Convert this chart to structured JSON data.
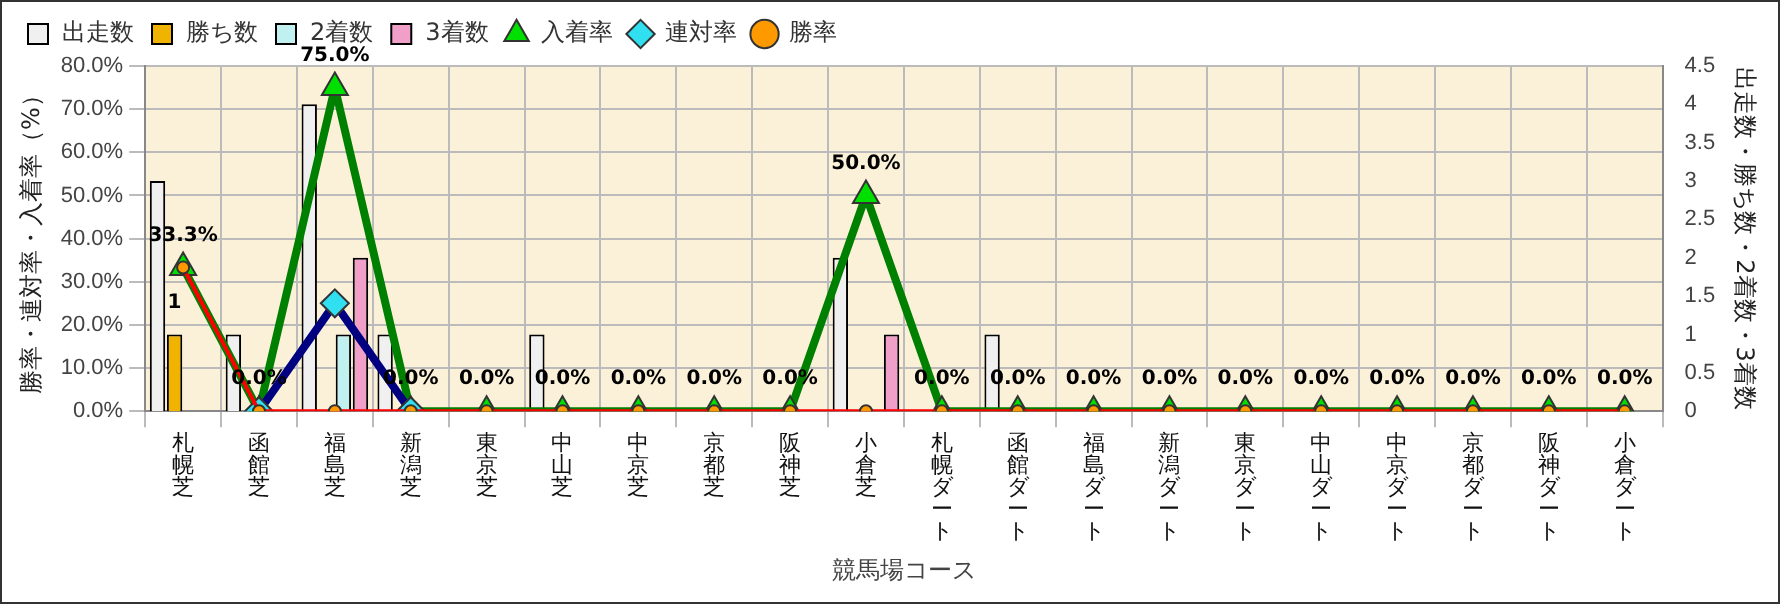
{
  "chart_data": {
    "type": "bar",
    "xlabel": "競馬場コース",
    "ylabel": "勝率・連対率・入着率（%）",
    "y2label": "出走数・勝ち数・2着数・3着数",
    "categories": [
      "札幌芝",
      "函館芝",
      "福島芝",
      "新潟芝",
      "東京芝",
      "中山芝",
      "中京芝",
      "京都芝",
      "阪神芝",
      "小倉芝",
      "札幌ダート",
      "函館ダート",
      "福島ダート",
      "新潟ダート",
      "東京ダート",
      "中山ダート",
      "中京ダート",
      "京都ダート",
      "阪神ダート",
      "小倉ダート"
    ],
    "series": [
      {
        "name": "出走数",
        "axis": "y2",
        "color": "#f0f0f0",
        "values": [
          3,
          1,
          4,
          1,
          0,
          1,
          0,
          0,
          0,
          2,
          0,
          1,
          0,
          0,
          0,
          0,
          0,
          0,
          0,
          0
        ]
      },
      {
        "name": "勝ち数",
        "axis": "y2",
        "color": "#f0b400",
        "values": [
          1,
          0,
          0,
          0,
          0,
          0,
          0,
          0,
          0,
          0,
          0,
          0,
          0,
          0,
          0,
          0,
          0,
          0,
          0,
          0
        ],
        "value_labels": [
          "1",
          null,
          null,
          null,
          null,
          null,
          null,
          null,
          null,
          null,
          null,
          null,
          null,
          null,
          null,
          null,
          null,
          null,
          null,
          null
        ]
      },
      {
        "name": "2着数",
        "axis": "y2",
        "color": "#c0f0f0",
        "values": [
          0,
          0,
          1,
          0,
          0,
          0,
          0,
          0,
          0,
          0,
          0,
          0,
          0,
          0,
          0,
          0,
          0,
          0,
          0,
          0
        ]
      },
      {
        "name": "3着数",
        "axis": "y2",
        "color": "#f0a0c8",
        "values": [
          0,
          0,
          2,
          0,
          0,
          0,
          0,
          0,
          0,
          1,
          0,
          0,
          0,
          0,
          0,
          0,
          0,
          0,
          0,
          0
        ]
      },
      {
        "name": "勝率",
        "type": "line",
        "marker": "circle",
        "color": "#ff0000",
        "values": [
          33.3,
          0,
          0,
          0,
          0,
          0,
          0,
          0,
          0,
          0,
          0,
          0,
          0,
          0,
          0,
          0,
          0,
          0,
          0,
          0
        ]
      },
      {
        "name": "連対率",
        "type": "line",
        "marker": "diamond",
        "color": "#000080",
        "values": [
          null,
          0,
          25,
          0,
          null,
          null,
          null,
          null,
          null,
          null,
          null,
          null,
          null,
          null,
          null,
          null,
          null,
          null,
          null,
          null
        ]
      },
      {
        "name": "入着率",
        "type": "line",
        "marker": "triangle",
        "color": "#008000",
        "values": [
          33.3,
          0,
          75,
          0,
          0,
          0,
          0,
          0,
          0,
          50,
          0,
          0,
          0,
          0,
          0,
          0,
          0,
          0,
          0,
          0
        ],
        "value_labels": [
          "33.3%",
          "0.0%",
          "75.0%",
          "0.0%",
          "0.0%",
          "0.0%",
          "0.0%",
          "0.0%",
          "0.0%",
          "50.0%",
          "0.0%",
          "0.0%",
          "0.0%",
          "0.0%",
          "0.0%",
          "0.0%",
          "0.0%",
          "0.0%",
          "0.0%",
          "0.0%"
        ]
      }
    ],
    "ylim": [
      0,
      80
    ],
    "yticks": [
      {
        "value": 0,
        "label": "0.0%"
      },
      {
        "value": 10,
        "label": "10.0%"
      },
      {
        "value": 20,
        "label": "20.0%"
      },
      {
        "value": 30,
        "label": "30.0%"
      },
      {
        "value": 40,
        "label": "40.0%"
      },
      {
        "value": 50,
        "label": "50.0%"
      },
      {
        "value": 60,
        "label": "60.0%"
      },
      {
        "value": 70,
        "label": "70.0%"
      },
      {
        "value": 80,
        "label": "80.0%"
      }
    ],
    "y2lim": [
      0,
      4.5
    ],
    "y2ticks": [
      0,
      0.5,
      1,
      1.5,
      2,
      2.5,
      3,
      3.5,
      4,
      4.5
    ],
    "grid": true,
    "legend": "top"
  }
}
